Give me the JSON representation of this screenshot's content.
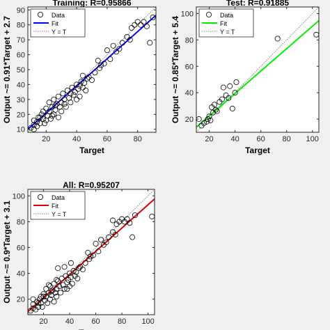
{
  "chart_data": [
    {
      "type": "scatter",
      "title": "Training: R=0.95866",
      "xlabel": "Target",
      "ylabel": "Output ~= 0.91*Target + 2.7",
      "xlim": [
        8,
        92
      ],
      "ylim": [
        8,
        92
      ],
      "xticks": [
        20,
        40,
        60,
        80
      ],
      "yticks": [
        10,
        20,
        30,
        40,
        50,
        60,
        70,
        80,
        90
      ],
      "grid": false,
      "legend_position": "top-left",
      "legend": [
        "Data",
        "Fit",
        "Y = T"
      ],
      "fit": {
        "slope": 0.91,
        "intercept": 2.7,
        "color": "#0000ff"
      },
      "identity_color": "#808080",
      "points": [
        [
          10,
          11
        ],
        [
          12,
          13
        ],
        [
          12,
          16
        ],
        [
          14,
          12
        ],
        [
          15,
          18
        ],
        [
          16,
          14
        ],
        [
          17,
          20
        ],
        [
          18,
          17
        ],
        [
          18,
          22
        ],
        [
          19,
          14
        ],
        [
          20,
          24
        ],
        [
          21,
          19
        ],
        [
          22,
          22
        ],
        [
          22,
          28
        ],
        [
          23,
          17
        ],
        [
          24,
          25
        ],
        [
          25,
          20
        ],
        [
          25,
          30
        ],
        [
          26,
          23
        ],
        [
          27,
          27
        ],
        [
          28,
          18
        ],
        [
          28,
          32
        ],
        [
          29,
          25
        ],
        [
          30,
          28
        ],
        [
          30,
          22
        ],
        [
          31,
          34
        ],
        [
          32,
          30
        ],
        [
          33,
          25
        ],
        [
          34,
          36
        ],
        [
          35,
          31
        ],
        [
          36,
          28
        ],
        [
          37,
          38
        ],
        [
          38,
          33
        ],
        [
          39,
          35
        ],
        [
          40,
          30
        ],
        [
          40,
          40
        ],
        [
          41,
          37
        ],
        [
          42,
          32
        ],
        [
          43,
          42
        ],
        [
          44,
          38
        ],
        [
          45,
          41
        ],
        [
          46,
          36
        ],
        [
          47,
          44
        ],
        [
          48,
          45
        ],
        [
          50,
          43
        ],
        [
          52,
          48
        ],
        [
          55,
          51
        ],
        [
          58,
          54
        ],
        [
          60,
          63
        ],
        [
          62,
          57
        ],
        [
          66,
          62
        ],
        [
          70,
          68
        ],
        [
          73,
          72
        ],
        [
          75,
          70
        ],
        [
          76,
          78
        ],
        [
          78,
          80
        ],
        [
          80,
          82
        ],
        [
          82,
          80
        ],
        [
          84,
          82
        ],
        [
          86,
          79
        ],
        [
          88,
          68
        ],
        [
          90,
          85
        ],
        [
          64,
          66
        ],
        [
          68,
          64
        ],
        [
          56,
          53
        ],
        [
          54,
          56
        ],
        [
          12,
          10
        ],
        [
          14,
          15
        ],
        [
          16,
          18
        ],
        [
          20,
          16
        ],
        [
          24,
          19
        ],
        [
          26,
          26
        ],
        [
          32,
          27
        ],
        [
          36,
          34
        ],
        [
          42,
          39
        ],
        [
          44,
          46
        ]
      ]
    },
    {
      "type": "scatter",
      "title": "Test: R=0.91885",
      "xlabel": "Target",
      "ylabel": "Output ~= 0.85*Target + 5.4",
      "xlim": [
        10,
        105
      ],
      "ylim": [
        10,
        105
      ],
      "xticks": [
        20,
        40,
        60,
        80,
        100
      ],
      "yticks": [
        20,
        40,
        60,
        80,
        100
      ],
      "grid": false,
      "legend_position": "top-left",
      "legend": [
        "Data",
        "Fit",
        "Y = T"
      ],
      "fit": {
        "slope": 0.85,
        "intercept": 5.4,
        "color": "#00ee00"
      },
      "identity_color": "#808080",
      "points": [
        [
          12,
          20
        ],
        [
          14,
          15
        ],
        [
          16,
          17
        ],
        [
          18,
          18
        ],
        [
          19,
          20
        ],
        [
          20,
          22
        ],
        [
          21,
          19
        ],
        [
          22,
          29
        ],
        [
          23,
          25
        ],
        [
          24,
          31
        ],
        [
          25,
          27
        ],
        [
          26,
          26
        ],
        [
          28,
          33
        ],
        [
          30,
          35
        ],
        [
          31,
          44
        ],
        [
          33,
          38
        ],
        [
          35,
          36
        ],
        [
          36,
          45
        ],
        [
          38,
          28
        ],
        [
          40,
          40
        ],
        [
          41,
          48
        ],
        [
          73,
          81
        ],
        [
          103,
          84
        ]
      ]
    },
    {
      "type": "scatter",
      "title": "All: R=0.95207",
      "xlabel": "Target",
      "ylabel": "Output ~= 0.9*Target + 3.1",
      "xlim": [
        8,
        105
      ],
      "ylim": [
        8,
        105
      ],
      "xticks": [
        20,
        40,
        60,
        80,
        100
      ],
      "yticks": [
        20,
        40,
        60,
        80,
        100
      ],
      "grid": false,
      "legend_position": "top-left",
      "legend": [
        "Data",
        "Fit",
        "Y = T"
      ],
      "fit": {
        "slope": 0.9,
        "intercept": 3.1,
        "color": "#dd0000"
      },
      "identity_color": "#808080",
      "points": [
        [
          10,
          11
        ],
        [
          12,
          13
        ],
        [
          12,
          16
        ],
        [
          14,
          12
        ],
        [
          15,
          18
        ],
        [
          16,
          14
        ],
        [
          17,
          20
        ],
        [
          18,
          17
        ],
        [
          18,
          22
        ],
        [
          19,
          14
        ],
        [
          20,
          24
        ],
        [
          21,
          19
        ],
        [
          22,
          22
        ],
        [
          22,
          28
        ],
        [
          23,
          17
        ],
        [
          24,
          25
        ],
        [
          25,
          20
        ],
        [
          25,
          30
        ],
        [
          26,
          23
        ],
        [
          27,
          27
        ],
        [
          28,
          18
        ],
        [
          28,
          32
        ],
        [
          29,
          25
        ],
        [
          30,
          28
        ],
        [
          30,
          22
        ],
        [
          31,
          34
        ],
        [
          32,
          30
        ],
        [
          33,
          25
        ],
        [
          34,
          36
        ],
        [
          35,
          31
        ],
        [
          36,
          28
        ],
        [
          37,
          38
        ],
        [
          38,
          33
        ],
        [
          39,
          35
        ],
        [
          40,
          30
        ],
        [
          40,
          40
        ],
        [
          41,
          37
        ],
        [
          42,
          32
        ],
        [
          43,
          42
        ],
        [
          44,
          38
        ],
        [
          45,
          41
        ],
        [
          46,
          36
        ],
        [
          47,
          44
        ],
        [
          48,
          45
        ],
        [
          50,
          43
        ],
        [
          52,
          48
        ],
        [
          55,
          51
        ],
        [
          58,
          54
        ],
        [
          60,
          63
        ],
        [
          62,
          57
        ],
        [
          66,
          62
        ],
        [
          70,
          68
        ],
        [
          73,
          72
        ],
        [
          75,
          70
        ],
        [
          76,
          78
        ],
        [
          78,
          80
        ],
        [
          80,
          82
        ],
        [
          82,
          80
        ],
        [
          84,
          82
        ],
        [
          86,
          79
        ],
        [
          88,
          68
        ],
        [
          90,
          85
        ],
        [
          64,
          66
        ],
        [
          68,
          64
        ],
        [
          56,
          53
        ],
        [
          54,
          56
        ],
        [
          12,
          20
        ],
        [
          16,
          17
        ],
        [
          20,
          22
        ],
        [
          24,
          31
        ],
        [
          26,
          26
        ],
        [
          30,
          35
        ],
        [
          31,
          44
        ],
        [
          36,
          45
        ],
        [
          38,
          28
        ],
        [
          41,
          48
        ],
        [
          73,
          81
        ],
        [
          103,
          84
        ]
      ]
    }
  ]
}
